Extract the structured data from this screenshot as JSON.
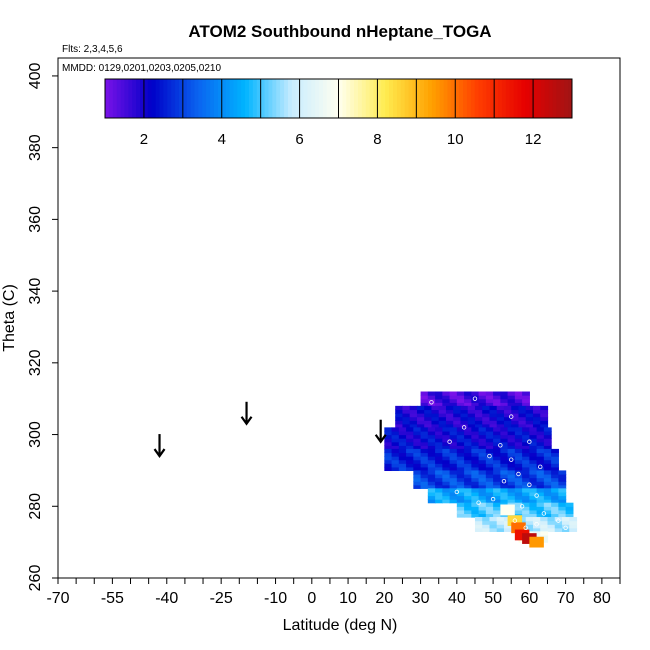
{
  "chart_data": {
    "type": "heatmap",
    "title": "ATOM2 Southbound nHeptane_TOGA",
    "flights_note": "Flts: 2,3,4,5,6",
    "dates_note": "MMDD: 0129,0201,0203,0205,0210",
    "xlabel": "Latitude (deg N)",
    "ylabel": "Theta (C)",
    "xlim": [
      -70,
      85
    ],
    "ylim": [
      260,
      405
    ],
    "x_ticks": [
      -70,
      -55,
      -40,
      -25,
      -10,
      0,
      10,
      20,
      30,
      40,
      50,
      60,
      70,
      80
    ],
    "y_ticks": [
      260,
      280,
      300,
      320,
      340,
      360,
      380,
      400
    ],
    "colorbar": {
      "min": 1,
      "max": 13,
      "ticks": [
        2,
        4,
        6,
        8,
        10,
        12
      ],
      "colors": [
        "#7a12e8",
        "#0000c8",
        "#0a64f0",
        "#00b4ff",
        "#c8ecff",
        "#fffff0",
        "#ffec50",
        "#ffa000",
        "#ff3c00",
        "#e60000",
        "#a01414"
      ]
    },
    "arrows": [
      {
        "lat": -42,
        "theta": 294
      },
      {
        "lat": -18,
        "theta": 303
      },
      {
        "lat": 19,
        "theta": 298
      }
    ],
    "field_bands": [
      {
        "theta_min": 308,
        "theta_max": 312,
        "lat_min": 30,
        "lat_max": 60,
        "value": 1.5
      },
      {
        "theta_min": 302,
        "theta_max": 308,
        "lat_min": 23,
        "lat_max": 65,
        "value": 2.0
      },
      {
        "theta_min": 296,
        "theta_max": 302,
        "lat_min": 20,
        "lat_max": 66,
        "value": 2.2
      },
      {
        "theta_min": 290,
        "theta_max": 296,
        "lat_min": 20,
        "lat_max": 67,
        "value": 2.6
      },
      {
        "theta_min": 285,
        "theta_max": 290,
        "lat_min": 28,
        "lat_max": 69,
        "value": 3.0
      },
      {
        "theta_min": 281,
        "theta_max": 285,
        "lat_min": 32,
        "lat_max": 70,
        "value": 4.4
      },
      {
        "theta_min": 277,
        "theta_max": 281,
        "lat_min": 40,
        "lat_max": 71,
        "value": 5.0
      },
      {
        "theta_min": 273,
        "theta_max": 277,
        "lat_min": 45,
        "lat_max": 72,
        "value": 5.8
      },
      {
        "theta_min": 270,
        "theta_max": 273,
        "lat_min": 57,
        "lat_max": 65,
        "value": 7.0
      }
    ],
    "hotspots": [
      {
        "lat": 56,
        "theta": 276,
        "value": 8.5
      },
      {
        "lat": 57,
        "theta": 274,
        "value": 10.0
      },
      {
        "lat": 58,
        "theta": 272,
        "value": 11.5
      },
      {
        "lat": 60,
        "theta": 271,
        "value": 12.5
      },
      {
        "lat": 62,
        "theta": 270,
        "value": 9.5
      },
      {
        "lat": 54,
        "theta": 279,
        "value": 7.0
      }
    ],
    "observations": [
      {
        "lat": 33,
        "theta": 309
      },
      {
        "lat": 45,
        "theta": 310
      },
      {
        "lat": 55,
        "theta": 305
      },
      {
        "lat": 42,
        "theta": 302
      },
      {
        "lat": 38,
        "theta": 298
      },
      {
        "lat": 52,
        "theta": 297
      },
      {
        "lat": 55,
        "theta": 293
      },
      {
        "lat": 57,
        "theta": 289
      },
      {
        "lat": 60,
        "theta": 286
      },
      {
        "lat": 62,
        "theta": 283
      },
      {
        "lat": 50,
        "theta": 282
      },
      {
        "lat": 46,
        "theta": 281
      },
      {
        "lat": 58,
        "theta": 280
      },
      {
        "lat": 64,
        "theta": 278
      },
      {
        "lat": 56,
        "theta": 276
      },
      {
        "lat": 59,
        "theta": 274
      },
      {
        "lat": 62,
        "theta": 275
      },
      {
        "lat": 68,
        "theta": 276
      },
      {
        "lat": 70,
        "theta": 274
      },
      {
        "lat": 49,
        "theta": 294
      },
      {
        "lat": 60,
        "theta": 298
      },
      {
        "lat": 63,
        "theta": 291
      },
      {
        "lat": 53,
        "theta": 287
      },
      {
        "lat": 40,
        "theta": 284
      }
    ]
  }
}
